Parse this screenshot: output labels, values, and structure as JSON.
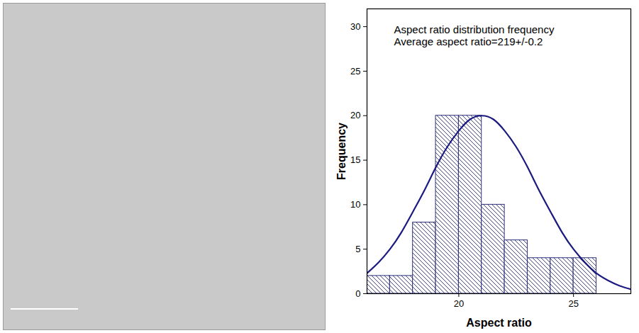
{
  "chart_data": {
    "type": "histogram",
    "annotations": [
      "Aspect ratio distribution frequency",
      "Average aspect ratio=219+/-0.2"
    ],
    "x_label": "Aspect ratio",
    "y_label": "Frequency",
    "bins": [
      16,
      17,
      18,
      19,
      20,
      21,
      22,
      23,
      24,
      25,
      26
    ],
    "counts": [
      2,
      2,
      8,
      20,
      20,
      10,
      6,
      4,
      4,
      4
    ],
    "color": "#2b2f7a",
    "fit": {
      "type": "line",
      "color": "#1a1a80",
      "x": [
        16,
        16.5,
        17,
        17.5,
        18,
        18.5,
        19,
        19.5,
        20,
        20.5,
        21,
        21.5,
        22,
        22.5,
        23,
        23.5,
        24,
        24.5,
        25,
        25.5,
        26,
        26.5,
        27,
        27.5
      ],
      "values": [
        2.3,
        3.5,
        5.0,
        6.9,
        9.2,
        11.6,
        14.2,
        16.5,
        18.3,
        19.6,
        20,
        19.6,
        18.3,
        16.5,
        14.2,
        11.6,
        9.2,
        6.9,
        5.0,
        3.5,
        2.3,
        1.5,
        0.9,
        0.5
      ]
    },
    "xlim": [
      16,
      27.5
    ],
    "xticks": [
      20,
      25
    ],
    "ylim": [
      0,
      32
    ],
    "yticks": [
      0,
      5,
      10,
      15,
      20,
      25,
      30
    ]
  }
}
